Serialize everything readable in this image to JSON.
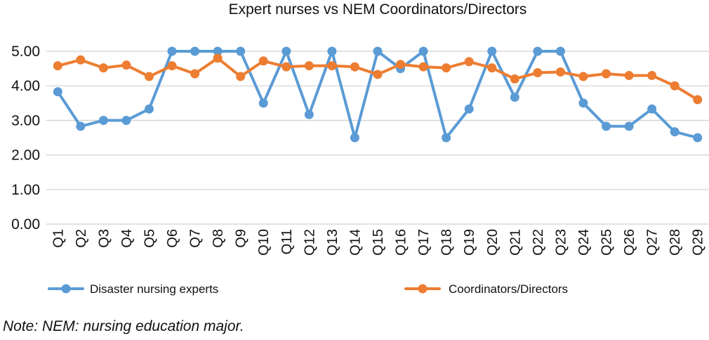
{
  "chart_data": {
    "type": "line",
    "title": "Expert nurses vs NEM Coordinators/Directors",
    "xlabel": "",
    "ylabel": "",
    "ylim": [
      0,
      5
    ],
    "yticks": [
      "0.00",
      "1.00",
      "2.00",
      "3.00",
      "4.00",
      "5.00"
    ],
    "grid": true,
    "legend_position": "bottom",
    "categories": [
      "Q1",
      "Q2",
      "Q3",
      "Q4",
      "Q5",
      "Q6",
      "Q7",
      "Q8",
      "Q9",
      "Q10",
      "Q11",
      "Q12",
      "Q13",
      "Q14",
      "Q15",
      "Q16",
      "Q17",
      "Q18",
      "Q19",
      "Q20",
      "Q21",
      "Q22",
      "Q23",
      "Q24",
      "Q25",
      "Q26",
      "Q27",
      "Q28",
      "Q29"
    ],
    "series": [
      {
        "name": "Disaster nursing experts",
        "color": "#5B9BD5",
        "values": [
          3.83,
          2.83,
          3.0,
          3.0,
          3.33,
          5.0,
          5.0,
          5.0,
          5.0,
          3.5,
          5.0,
          3.17,
          5.0,
          2.5,
          5.0,
          4.5,
          5.0,
          2.5,
          3.33,
          5.0,
          3.67,
          5.0,
          5.0,
          3.5,
          2.83,
          2.83,
          3.33,
          2.67,
          2.5
        ]
      },
      {
        "name": "Coordinators/Directors",
        "color": "#ED7D31",
        "values": [
          4.58,
          4.75,
          4.52,
          4.6,
          4.27,
          4.58,
          4.35,
          4.8,
          4.27,
          4.72,
          4.55,
          4.58,
          4.58,
          4.55,
          4.33,
          4.62,
          4.55,
          4.52,
          4.7,
          4.52,
          4.2,
          4.38,
          4.4,
          4.27,
          4.35,
          4.3,
          4.3,
          4.0,
          3.6
        ]
      }
    ]
  },
  "note": "Note: NEM: nursing education major."
}
